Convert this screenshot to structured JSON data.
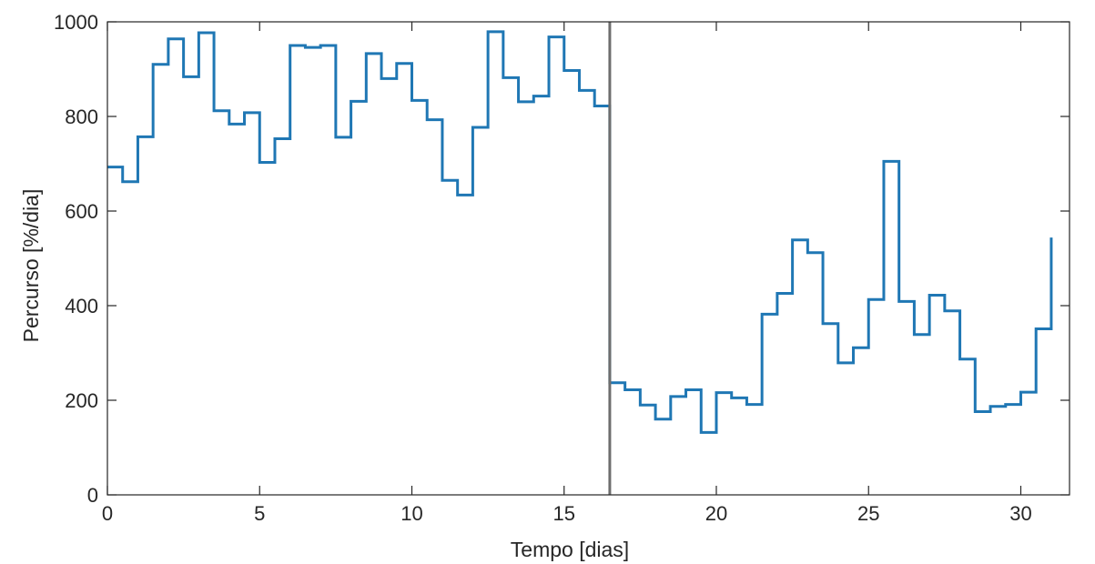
{
  "chart_data": {
    "type": "line",
    "step": true,
    "xlabel": "Tempo [dias]",
    "ylabel": "Percurso [%/dia]",
    "xlim": [
      0,
      31.6
    ],
    "ylim": [
      0,
      1000
    ],
    "xticks": [
      0,
      5,
      10,
      15,
      20,
      25,
      30
    ],
    "yticks": [
      0,
      200,
      400,
      600,
      800,
      1000
    ],
    "grid": false,
    "line_color": "#1f77b4",
    "marker_line": {
      "x": 16.5,
      "color": "#6e6e6e"
    },
    "series": [
      {
        "x": [
          0,
          0.5,
          1,
          1.5,
          2,
          2.5,
          3,
          3.5,
          4,
          4.5,
          5,
          5.5,
          6,
          6.5,
          7,
          7.5,
          8,
          8.5,
          9,
          9.5,
          10,
          10.5,
          11,
          11.5,
          12,
          12.5,
          13,
          13.5,
          14,
          14.5,
          15,
          15.5,
          16,
          16.5,
          17,
          17.5,
          18,
          18.5,
          19,
          19.5,
          20,
          20.5,
          21,
          21.5,
          22,
          22.5,
          23,
          23.5,
          24,
          24.5,
          25,
          25.5,
          26,
          26.5,
          27,
          27.5,
          28,
          28.5,
          29,
          29.5,
          30,
          30.5,
          31
        ],
        "y": [
          693,
          662,
          757,
          910,
          964,
          884,
          977,
          812,
          784,
          808,
          703,
          753,
          950,
          946,
          950,
          756,
          832,
          933,
          880,
          912,
          834,
          793,
          665,
          634,
          777,
          979,
          882,
          831,
          843,
          968,
          897,
          855,
          822,
          237,
          222,
          190,
          160,
          208,
          222,
          132,
          216,
          205,
          191,
          382,
          426,
          539,
          512,
          362,
          279,
          311,
          413,
          705,
          409,
          339,
          422,
          389,
          287,
          176,
          187,
          191,
          217,
          351,
          544
        ]
      }
    ]
  }
}
